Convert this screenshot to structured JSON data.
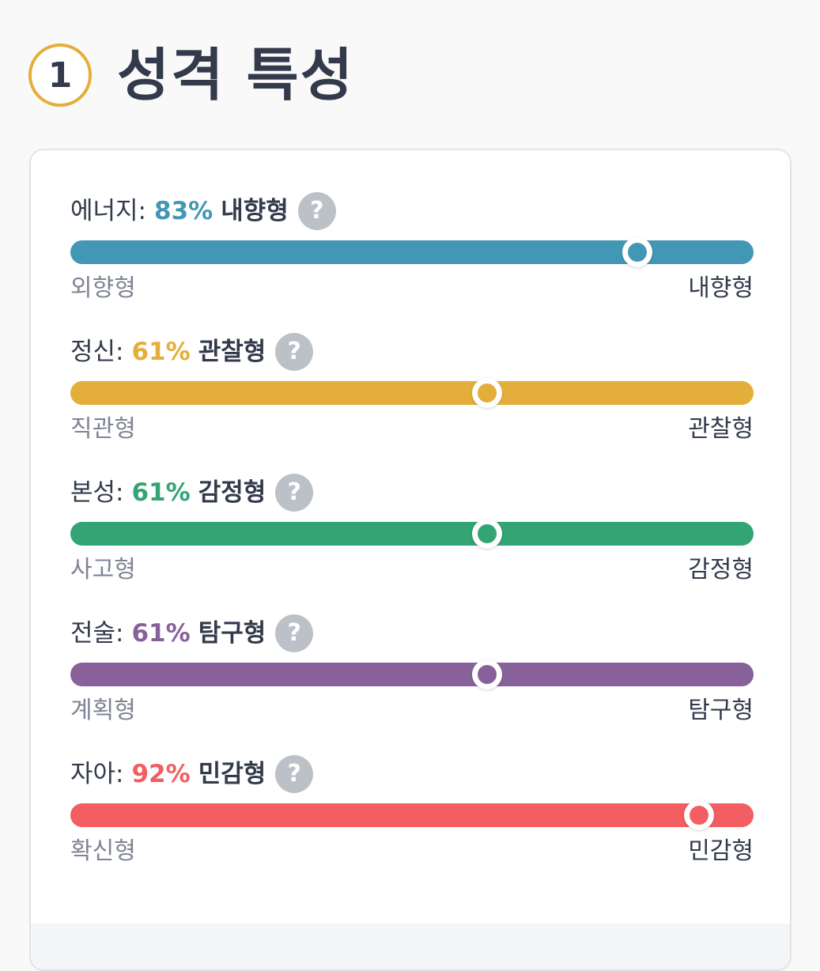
{
  "section": {
    "number": "1",
    "title": "성격 특성"
  },
  "traits": [
    {
      "name": "에너지:",
      "percent": "83%",
      "type": "내향형",
      "left_label": "외향형",
      "right_label": "내향형",
      "value": 0.83,
      "color": "#4298b4"
    },
    {
      "name": "정신:",
      "percent": "61%",
      "type": "관찰형",
      "left_label": "직관형",
      "right_label": "관찰형",
      "value": 0.61,
      "color": "#e4ae3a"
    },
    {
      "name": "본성:",
      "percent": "61%",
      "type": "감정형",
      "left_label": "사고형",
      "right_label": "감정형",
      "value": 0.61,
      "color": "#33a474"
    },
    {
      "name": "전술:",
      "percent": "61%",
      "type": "탐구형",
      "left_label": "계획형",
      "right_label": "탐구형",
      "value": 0.61,
      "color": "#88619a"
    },
    {
      "name": "자아:",
      "percent": "92%",
      "type": "민감형",
      "left_label": "확신형",
      "right_label": "민감형",
      "value": 0.92,
      "color": "#f25e62"
    }
  ],
  "help_icon": {
    "symbol": "?",
    "icon": "question-circle-icon"
  }
}
